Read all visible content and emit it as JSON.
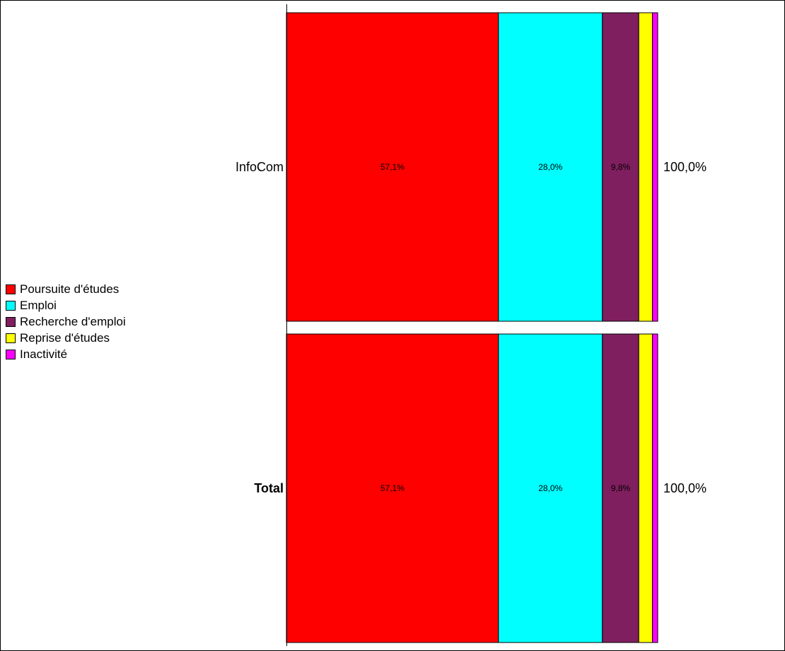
{
  "chart_data": {
    "type": "bar",
    "orientation": "horizontal",
    "stacked": true,
    "percent_stacked": true,
    "categories": [
      "InfoCom",
      "Total"
    ],
    "bold_categories": [
      "Total"
    ],
    "totals": [
      "100,0%",
      "100,0%"
    ],
    "series": [
      {
        "name": "Poursuite d'études",
        "color": "#ff0000",
        "values": [
          57.1,
          57.1
        ],
        "labels": [
          "57,1%",
          "57,1%"
        ]
      },
      {
        "name": "Emploi",
        "color": "#00ffff",
        "values": [
          28.0,
          28.0
        ],
        "labels": [
          "28,0%",
          "28,0%"
        ]
      },
      {
        "name": "Recherche d'emploi",
        "color": "#7f1f5f",
        "values": [
          9.8,
          9.8
        ],
        "labels": [
          "9,8%",
          "9,8%"
        ]
      },
      {
        "name": "Reprise d'études",
        "color": "#ffff00",
        "values": [
          3.7,
          3.7
        ],
        "labels": [
          "",
          ""
        ]
      },
      {
        "name": "Inactivité",
        "color": "#ff00ff",
        "values": [
          1.4,
          1.4
        ],
        "labels": [
          "",
          ""
        ]
      }
    ],
    "xlim": [
      0,
      100
    ],
    "grid": false,
    "legend_position": "left"
  }
}
